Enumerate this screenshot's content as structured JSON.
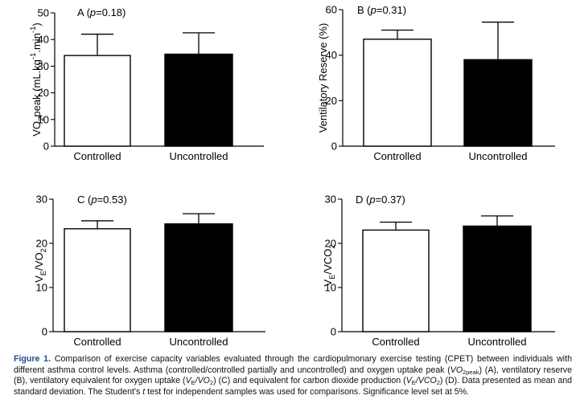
{
  "chart_data": [
    {
      "id": "A",
      "type": "bar",
      "panel_label": "A (",
      "p_symbol": "p",
      "p_value": "=0.18)",
      "ylabel_parts": [
        {
          "t": "VO",
          "sup": false,
          "sub": false
        },
        {
          "t": "2",
          "sup": false,
          "sub": true
        },
        {
          "t": "peak (mL.kg",
          "sup": false,
          "sub": false
        },
        {
          "t": "-1",
          "sup": true,
          "sub": false
        },
        {
          "t": ".min",
          "sup": false,
          "sub": false
        },
        {
          "t": "-1",
          "sup": true,
          "sub": false
        },
        {
          "t": ")",
          "sup": false,
          "sub": false
        }
      ],
      "categories": [
        "Controlled",
        "Uncontrolled"
      ],
      "values": [
        34,
        34.5
      ],
      "errors": [
        8,
        8
      ],
      "ylim": [
        0,
        50
      ],
      "ytick_labels": [
        "0",
        "10",
        "20",
        "30",
        "40",
        "50"
      ],
      "colors": [
        "#ffffff",
        "#000000"
      ]
    },
    {
      "id": "B",
      "type": "bar",
      "panel_label": "B (",
      "p_symbol": "p",
      "p_value": "=0.31)",
      "ylabel_parts": [
        {
          "t": "Ventilatory Reserve (%)",
          "sup": false,
          "sub": false
        }
      ],
      "categories": [
        "Controlled",
        "Uncontrolled"
      ],
      "values": [
        47,
        38
      ],
      "errors": [
        4,
        16.5
      ],
      "ylim": [
        0,
        60
      ],
      "ytick_labels": [
        "0",
        "20",
        "40",
        "60"
      ],
      "colors": [
        "#ffffff",
        "#000000"
      ]
    },
    {
      "id": "C",
      "type": "bar",
      "panel_label": "C (",
      "p_symbol": "p",
      "p_value": "=0.53)",
      "ylabel_parts": [
        {
          "t": "V",
          "sup": false,
          "sub": false
        },
        {
          "t": "E",
          "sup": false,
          "sub": true
        },
        {
          "t": "/VO",
          "sup": false,
          "sub": false
        },
        {
          "t": "2",
          "sup": false,
          "sub": true
        }
      ],
      "categories": [
        "Controlled",
        "Uncontrolled"
      ],
      "values": [
        23.3,
        24.4
      ],
      "errors": [
        1.8,
        2.3
      ],
      "ylim": [
        0,
        30
      ],
      "ytick_labels": [
        "0",
        "10",
        "20",
        "30"
      ],
      "colors": [
        "#ffffff",
        "#000000"
      ]
    },
    {
      "id": "D",
      "type": "bar",
      "panel_label": "D (",
      "p_symbol": "p",
      "p_value": "=0.37)",
      "ylabel_parts": [
        {
          "t": "V",
          "sup": false,
          "sub": false
        },
        {
          "t": "E",
          "sup": false,
          "sub": true
        },
        {
          "t": "/VCO",
          "sup": false,
          "sub": false
        },
        {
          "t": "2",
          "sup": false,
          "sub": true
        }
      ],
      "categories": [
        "Controlled",
        "Uncontrolled"
      ],
      "values": [
        23,
        23.9
      ],
      "errors": [
        1.8,
        2.3
      ],
      "ylim": [
        0,
        30
      ],
      "ytick_labels": [
        "0",
        "10",
        "20",
        "30"
      ],
      "colors": [
        "#ffffff",
        "#000000"
      ]
    }
  ],
  "caption": {
    "label": "Figure 1.",
    "segments": [
      {
        "t": " Comparison of exercise capacity variables evaluated through the cardiopulmonary exercise testing (CPET) between individuals with different asthma control levels. Asthma (controlled/controlled partially and uncontrolled) and oxygen uptake peak (",
        "i": false,
        "sub": false
      },
      {
        "t": "VO",
        "i": true,
        "sub": false
      },
      {
        "t": "2peak",
        "i": false,
        "sub": true
      },
      {
        "t": ") (A), ventilatory reserve (B), ventilatory equivalent for oxygen uptake (",
        "i": false,
        "sub": false
      },
      {
        "t": "V",
        "i": true,
        "sub": false
      },
      {
        "t": "E",
        "i": false,
        "sub": true
      },
      {
        "t": "/VO",
        "i": true,
        "sub": false
      },
      {
        "t": "2",
        "i": false,
        "sub": true
      },
      {
        "t": ") (C) and equivalent for carbon dioxide production (",
        "i": false,
        "sub": false
      },
      {
        "t": "V",
        "i": true,
        "sub": false
      },
      {
        "t": "E",
        "i": false,
        "sub": true
      },
      {
        "t": "/VCO",
        "i": true,
        "sub": false
      },
      {
        "t": "2",
        "i": false,
        "sub": true
      },
      {
        "t": ") (D). Data presented as mean and standard deviation. The Student's ",
        "i": false,
        "sub": false
      },
      {
        "t": "t",
        "i": true,
        "sub": false
      },
      {
        "t": " test for independent samples was used for comparisons. Significance level set at 5%.",
        "i": false,
        "sub": false
      }
    ]
  }
}
